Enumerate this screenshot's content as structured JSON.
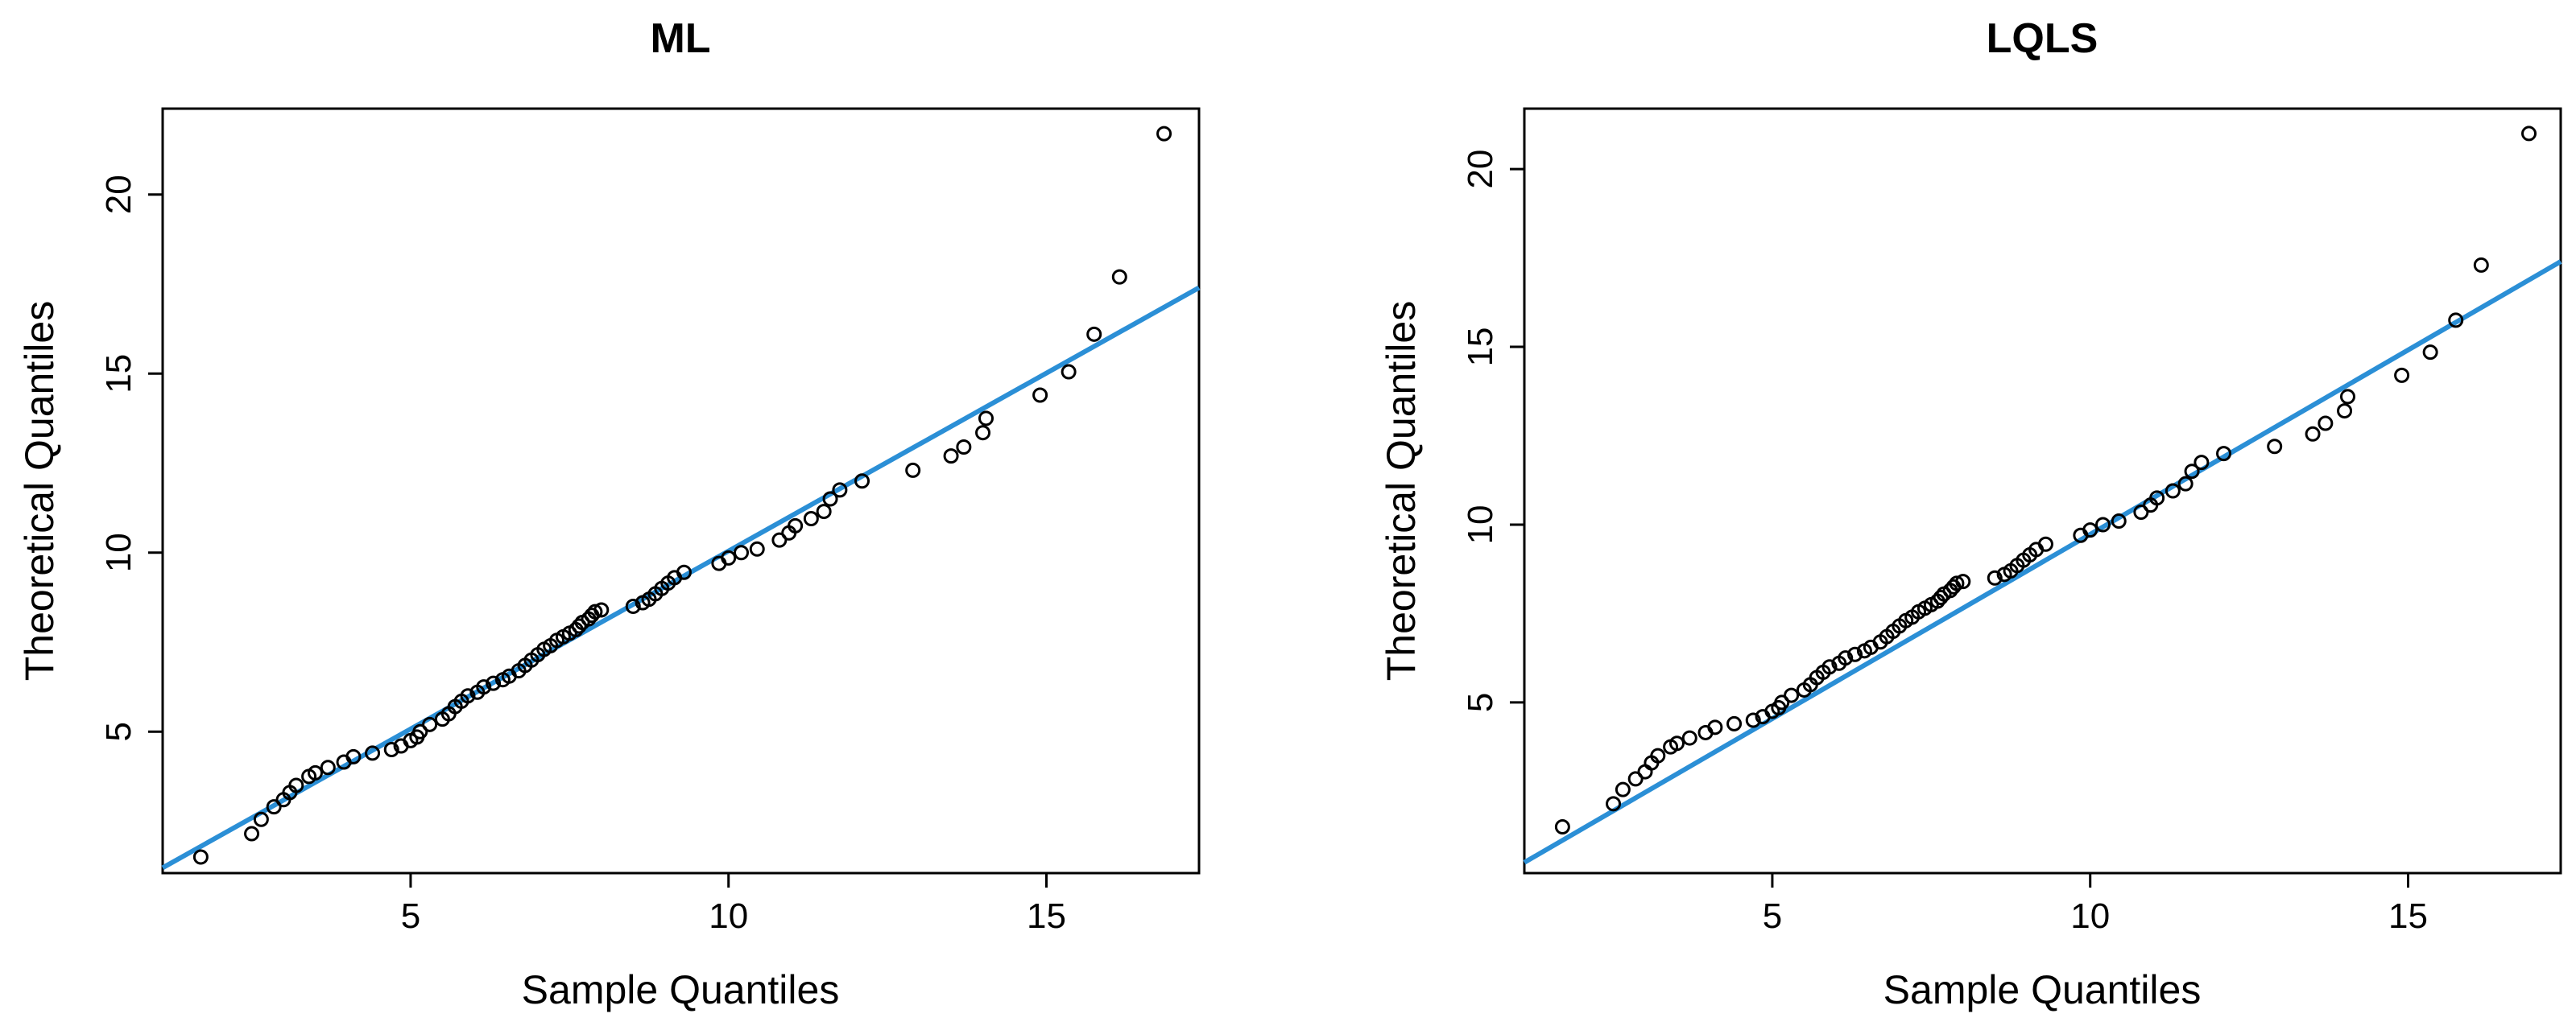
{
  "chart_data": [
    {
      "type": "scatter",
      "title": "ML",
      "xlabel": "Sample Quantiles",
      "ylabel": "Theoretical Quantiles",
      "xlim": [
        1.1,
        17.4
      ],
      "ylim": [
        1.05,
        22.4
      ],
      "xticks": [
        "5",
        "10",
        "15"
      ],
      "yticks": [
        "5",
        "10",
        "15",
        "20"
      ],
      "grid": false,
      "points_color": "#000000",
      "line_color": "#2b8fd6",
      "reference_line": {
        "x": [
          1.1,
          17.4
        ],
        "y": [
          1.2,
          17.4
        ]
      },
      "series": [
        {
          "x": [
            1.7,
            2.5,
            2.65,
            2.85,
            3.0,
            3.1,
            3.2,
            3.4,
            3.5,
            3.7,
            3.95,
            4.1,
            4.4,
            4.7,
            4.85,
            5.0,
            5.1,
            5.15,
            5.3,
            5.5,
            5.6,
            5.7,
            5.8,
            5.9,
            6.05,
            6.15,
            6.3,
            6.45,
            6.55,
            6.7,
            6.8,
            6.9,
            7.0,
            7.1,
            7.2,
            7.3,
            7.4,
            7.5,
            7.6,
            7.65,
            7.7,
            7.8,
            7.85,
            7.9,
            8.0,
            8.5,
            8.65,
            8.75,
            8.85,
            8.95,
            9.05,
            9.15,
            9.3,
            9.85,
            10.0,
            10.2,
            10.45,
            10.8,
            10.95,
            11.05,
            11.3,
            11.5,
            11.6,
            11.75,
            12.1,
            12.9,
            13.5,
            13.7,
            14.0,
            14.05,
            14.9,
            15.35,
            15.75,
            16.15,
            16.85
          ],
          "y": [
            1.5,
            2.15,
            2.55,
            2.9,
            3.1,
            3.3,
            3.5,
            3.75,
            3.85,
            4.0,
            4.15,
            4.3,
            4.4,
            4.5,
            4.6,
            4.75,
            4.85,
            5.0,
            5.2,
            5.35,
            5.5,
            5.7,
            5.85,
            6.0,
            6.1,
            6.25,
            6.35,
            6.45,
            6.55,
            6.7,
            6.85,
            7.0,
            7.15,
            7.3,
            7.4,
            7.55,
            7.65,
            7.75,
            7.85,
            7.95,
            8.05,
            8.15,
            8.25,
            8.35,
            8.4,
            8.5,
            8.6,
            8.7,
            8.85,
            9.0,
            9.15,
            9.3,
            9.45,
            9.7,
            9.85,
            10.0,
            10.1,
            10.35,
            10.55,
            10.75,
            10.95,
            11.15,
            11.5,
            11.75,
            12.0,
            12.3,
            12.7,
            12.95,
            13.35,
            13.75,
            14.4,
            15.05,
            16.1,
            17.7,
            21.7
          ]
        }
      ]
    },
    {
      "type": "scatter",
      "title": "LQLS",
      "xlabel": "Sample Quantiles",
      "ylabel": "Theoretical Quantiles",
      "xlim": [
        1.1,
        17.4
      ],
      "ylim": [
        0.2,
        21.7
      ],
      "xticks": [
        "5",
        "10",
        "15"
      ],
      "yticks": [
        "5",
        "10",
        "15",
        "20"
      ],
      "grid": false,
      "points_color": "#000000",
      "line_color": "#2b8fd6",
      "reference_line": {
        "x": [
          1.1,
          17.4
        ],
        "y": [
          0.5,
          17.4
        ]
      },
      "series": [
        {
          "x": [
            1.7,
            2.5,
            2.65,
            2.85,
            3.0,
            3.1,
            3.2,
            3.4,
            3.5,
            3.7,
            3.95,
            4.1,
            4.4,
            4.7,
            4.85,
            5.0,
            5.1,
            5.15,
            5.3,
            5.5,
            5.6,
            5.7,
            5.8,
            5.9,
            6.05,
            6.15,
            6.3,
            6.45,
            6.55,
            6.7,
            6.8,
            6.9,
            7.0,
            7.1,
            7.2,
            7.3,
            7.4,
            7.5,
            7.6,
            7.65,
            7.7,
            7.8,
            7.85,
            7.9,
            8.0,
            8.5,
            8.65,
            8.75,
            8.85,
            8.95,
            9.05,
            9.15,
            9.3,
            9.85,
            10.0,
            10.2,
            10.45,
            10.8,
            10.95,
            11.05,
            11.3,
            11.5,
            11.6,
            11.75,
            12.1,
            12.9,
            13.5,
            13.7,
            14.0,
            14.05,
            14.9,
            15.35,
            15.75,
            16.15,
            16.9
          ],
          "y": [
            1.5,
            2.15,
            2.55,
            2.85,
            3.05,
            3.3,
            3.5,
            3.75,
            3.85,
            4.0,
            4.15,
            4.3,
            4.4,
            4.5,
            4.6,
            4.75,
            4.85,
            5.0,
            5.2,
            5.35,
            5.5,
            5.7,
            5.85,
            6.0,
            6.1,
            6.25,
            6.35,
            6.45,
            6.55,
            6.7,
            6.85,
            7.0,
            7.15,
            7.3,
            7.4,
            7.55,
            7.65,
            7.75,
            7.85,
            7.95,
            8.05,
            8.15,
            8.25,
            8.35,
            8.4,
            8.5,
            8.6,
            8.7,
            8.85,
            9.0,
            9.15,
            9.3,
            9.45,
            9.7,
            9.85,
            10.0,
            10.1,
            10.35,
            10.55,
            10.75,
            10.95,
            11.15,
            11.5,
            11.75,
            12.0,
            12.2,
            12.55,
            12.85,
            13.2,
            13.6,
            14.2,
            14.85,
            15.75,
            17.3,
            21.0
          ]
        }
      ]
    }
  ]
}
